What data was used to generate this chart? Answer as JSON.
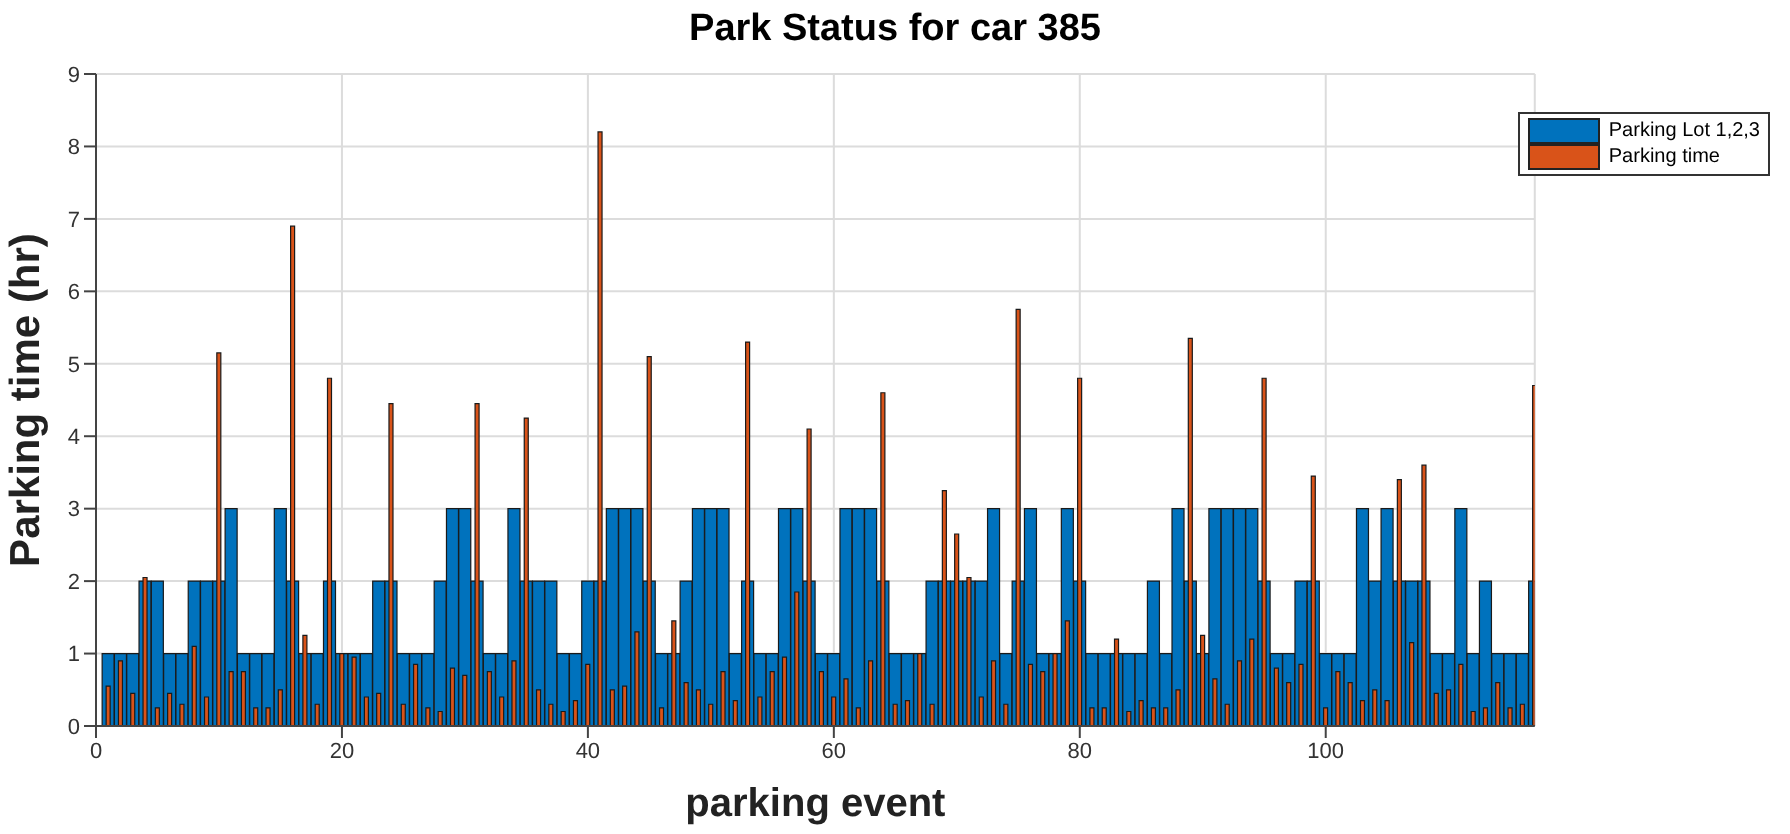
{
  "chart_data": {
    "type": "bar",
    "title": "Park Status for car 385",
    "xlabel": "parking event",
    "ylabel": "Parking time (hr)",
    "x": [
      1,
      2,
      3,
      4,
      5,
      6,
      7,
      8,
      9,
      10,
      11,
      12,
      13,
      14,
      15,
      16,
      17,
      18,
      19,
      20,
      21,
      22,
      23,
      24,
      25,
      26,
      27,
      28,
      29,
      30,
      31,
      32,
      33,
      34,
      35,
      36,
      37,
      38,
      39,
      40,
      41,
      42,
      43,
      44,
      45,
      46,
      47,
      48,
      49,
      50,
      51,
      52,
      53,
      54,
      55,
      56,
      57,
      58,
      59,
      60,
      61,
      62,
      63,
      64,
      65,
      66,
      67,
      68,
      69,
      70,
      71,
      72,
      73,
      74,
      75,
      76,
      77,
      78,
      79,
      80,
      81,
      82,
      83,
      84,
      85,
      86,
      87,
      88,
      89,
      90,
      91,
      92,
      93,
      94,
      95,
      96,
      97,
      98,
      99,
      100,
      101,
      102,
      103,
      104,
      105,
      106,
      107,
      108,
      109,
      110,
      111,
      112,
      113,
      114,
      115,
      116,
      117
    ],
    "series": [
      {
        "name": "Parking Lot 1,2,3",
        "color": "#0072bd",
        "values": [
          1,
          1,
          1,
          2,
          2,
          1,
          1,
          2,
          2,
          2,
          3,
          1,
          1,
          1,
          3,
          2,
          1,
          1,
          2,
          1,
          1,
          1,
          2,
          2,
          1,
          1,
          1,
          2,
          3,
          3,
          2,
          1,
          1,
          3,
          2,
          2,
          2,
          1,
          1,
          2,
          2,
          3,
          3,
          3,
          2,
          1,
          1,
          2,
          3,
          3,
          3,
          1,
          2,
          1,
          1,
          3,
          3,
          2,
          1,
          1,
          3,
          3,
          3,
          2,
          1,
          1,
          1,
          2,
          2,
          2,
          2,
          2,
          3,
          1,
          2,
          3,
          1,
          1,
          3,
          2,
          1,
          1,
          1,
          1,
          1,
          2,
          1,
          3,
          2,
          1,
          3,
          3,
          3,
          3,
          2,
          1,
          1,
          2,
          2,
          1,
          1,
          1,
          3,
          2,
          3,
          2,
          2,
          2,
          1,
          1,
          3,
          1,
          2,
          1,
          1,
          1,
          2
        ]
      },
      {
        "name": "Parking time",
        "color": "#d95319",
        "values": [
          0.55,
          0.9,
          0.45,
          2.05,
          0.25,
          0.45,
          0.3,
          1.1,
          0.4,
          5.15,
          0.75,
          0.75,
          0.25,
          0.25,
          0.5,
          6.9,
          1.25,
          0.3,
          4.8,
          1.0,
          0.95,
          0.4,
          0.45,
          4.45,
          0.3,
          0.85,
          0.25,
          0.2,
          0.8,
          0.7,
          4.45,
          0.75,
          0.4,
          0.9,
          4.25,
          0.5,
          0.3,
          0.2,
          0.35,
          0.85,
          8.2,
          0.5,
          0.55,
          1.3,
          5.1,
          0.25,
          1.45,
          0.6,
          0.5,
          0.3,
          0.75,
          0.35,
          5.3,
          0.4,
          0.75,
          0.95,
          1.85,
          4.1,
          0.75,
          0.4,
          0.65,
          0.25,
          0.9,
          4.6,
          0.3,
          0.35,
          1.0,
          0.3,
          3.25,
          2.65,
          2.05,
          0.4,
          0.9,
          0.3,
          5.75,
          0.85,
          0.75,
          1.0,
          1.45,
          4.8,
          0.25,
          0.25,
          1.2,
          0.2,
          0.35,
          0.25,
          0.25,
          0.5,
          5.35,
          1.25,
          0.65,
          0.3,
          0.9,
          1.2,
          4.8,
          0.8,
          0.6,
          0.85,
          3.45,
          0.25,
          0.75,
          0.6,
          0.35,
          0.5,
          0.35,
          3.4,
          1.15,
          3.6,
          0.45,
          0.5,
          0.85,
          0.2,
          0.25,
          0.6,
          0.25,
          0.3,
          4.7
        ]
      }
    ],
    "xlim": [
      0,
      117
    ],
    "xticks": [
      0,
      20,
      40,
      60,
      80,
      100
    ],
    "ylim": [
      0,
      9
    ],
    "yticks": [
      0,
      1,
      2,
      3,
      4,
      5,
      6,
      7,
      8,
      9
    ],
    "grid": true,
    "legend": "top right"
  }
}
